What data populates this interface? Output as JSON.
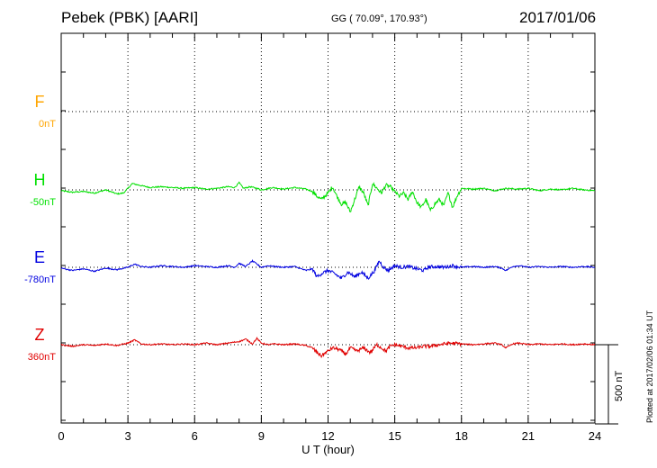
{
  "header": {
    "title": "Pebek (PBK)  [AARI]",
    "coords": "GG ( 70.09°, 170.93°)",
    "date": "2017/01/06"
  },
  "footnote": "Plotted at 2017/02/06 01:34  UT",
  "scale_label": "500  nT",
  "chart_data": {
    "type": "line",
    "xlabel": "U T (hour)",
    "xlim": [
      0,
      24
    ],
    "xticks": [
      0,
      3,
      6,
      9,
      12,
      15,
      18,
      21,
      24
    ],
    "grid": true,
    "scale_bar_nT": 500,
    "series": [
      {
        "name": "F",
        "offset_label": "0nT",
        "color": "#ffa500",
        "t": [],
        "v": []
      },
      {
        "name": "H",
        "offset_label": "-50nT",
        "color": "#00e000",
        "t": [
          0,
          0.5,
          1,
          1.5,
          2,
          2.5,
          2.8,
          3,
          3.2,
          3.5,
          4,
          4.5,
          5,
          5.5,
          6,
          6.5,
          7,
          7.5,
          7.8,
          8,
          8.2,
          8.5,
          8.8,
          9,
          9.5,
          10,
          10.5,
          11,
          11.3,
          11.5,
          11.7,
          12,
          12.2,
          12.4,
          12.6,
          12.8,
          13,
          13.2,
          13.4,
          13.6,
          13.8,
          14,
          14.2,
          14.4,
          14.6,
          14.8,
          15,
          15.2,
          15.4,
          15.6,
          15.8,
          16,
          16.2,
          16.4,
          16.6,
          16.8,
          17,
          17.2,
          17.4,
          17.6,
          17.8,
          18,
          18.5,
          19,
          19.5,
          20,
          20.5,
          21,
          21.5,
          22,
          22.5,
          23,
          23.5,
          24
        ],
        "v": [
          -5,
          -15,
          -10,
          -20,
          0,
          -25,
          -20,
          10,
          40,
          30,
          15,
          20,
          15,
          10,
          15,
          5,
          10,
          20,
          15,
          45,
          10,
          20,
          10,
          0,
          15,
          5,
          15,
          5,
          -10,
          -40,
          -60,
          -20,
          20,
          -40,
          -90,
          -80,
          -140,
          -60,
          20,
          -20,
          -100,
          40,
          10,
          -20,
          30,
          20,
          -10,
          -40,
          -20,
          -60,
          -10,
          -80,
          -110,
          -60,
          -130,
          -90,
          -60,
          -100,
          -20,
          -110,
          -40,
          10,
          5,
          10,
          -5,
          10,
          5,
          10,
          -5,
          5,
          0,
          10,
          0,
          -5
        ]
      },
      {
        "name": "E",
        "offset_label": "-780nT",
        "color": "#0000e0",
        "t": [
          0,
          0.5,
          1,
          1.5,
          2,
          2.5,
          3,
          3.3,
          3.6,
          4,
          4.5,
          5,
          5.5,
          6,
          6.5,
          7,
          7.5,
          7.8,
          8,
          8.3,
          8.6,
          8.8,
          9,
          9.3,
          9.6,
          10,
          10.5,
          11,
          11.3,
          11.5,
          11.7,
          12,
          12.3,
          12.6,
          12.9,
          13.2,
          13.5,
          13.8,
          14.1,
          14.3,
          14.5,
          14.7,
          15,
          15.3,
          15.6,
          16,
          16.3,
          16.5,
          16.8,
          17.2,
          17.6,
          18,
          18.5,
          19,
          19.5,
          19.8,
          20,
          20.3,
          20.6,
          21,
          21.5,
          22,
          22.5,
          23,
          23.5,
          24
        ],
        "v": [
          -5,
          -20,
          -10,
          -25,
          -5,
          -15,
          0,
          20,
          5,
          0,
          10,
          5,
          0,
          10,
          5,
          0,
          10,
          0,
          25,
          5,
          40,
          20,
          0,
          10,
          5,
          0,
          5,
          -20,
          -10,
          -60,
          -40,
          -20,
          -40,
          -70,
          -30,
          -60,
          -30,
          -70,
          -20,
          40,
          0,
          -20,
          10,
          0,
          5,
          -10,
          -20,
          0,
          5,
          0,
          10,
          0,
          5,
          0,
          5,
          -5,
          -20,
          5,
          10,
          0,
          5,
          0,
          5,
          0,
          5,
          0
        ]
      },
      {
        "name": "Z",
        "offset_label": "360nT",
        "color": "#e00000",
        "t": [
          0,
          0.5,
          1,
          1.5,
          2,
          2.5,
          3,
          3.3,
          3.6,
          4,
          4.5,
          5,
          5.5,
          6,
          6.5,
          7,
          7.5,
          8,
          8.3,
          8.6,
          8.8,
          9,
          9.3,
          9.6,
          10,
          10.5,
          11,
          11.3,
          11.5,
          11.7,
          12,
          12.2,
          12.5,
          12.8,
          13,
          13.3,
          13.6,
          13.9,
          14.2,
          14.4,
          14.6,
          14.8,
          15,
          15.3,
          15.6,
          16,
          16.3,
          16.6,
          17,
          17.5,
          18,
          18.5,
          19,
          19.5,
          19.8,
          20,
          20.3,
          20.6,
          21,
          21.5,
          22,
          22.5,
          23,
          23.5,
          24
        ],
        "v": [
          0,
          -10,
          0,
          -5,
          5,
          -5,
          10,
          30,
          5,
          0,
          5,
          0,
          5,
          0,
          10,
          0,
          10,
          20,
          35,
          5,
          40,
          10,
          0,
          5,
          0,
          5,
          -5,
          -20,
          -50,
          -70,
          -40,
          -20,
          -30,
          -60,
          -20,
          -40,
          -20,
          -50,
          0,
          -20,
          -40,
          -10,
          0,
          -10,
          -20,
          -20,
          -10,
          -10,
          0,
          10,
          5,
          0,
          5,
          10,
          0,
          -20,
          5,
          10,
          0,
          5,
          0,
          5,
          0,
          5,
          0
        ]
      }
    ]
  }
}
